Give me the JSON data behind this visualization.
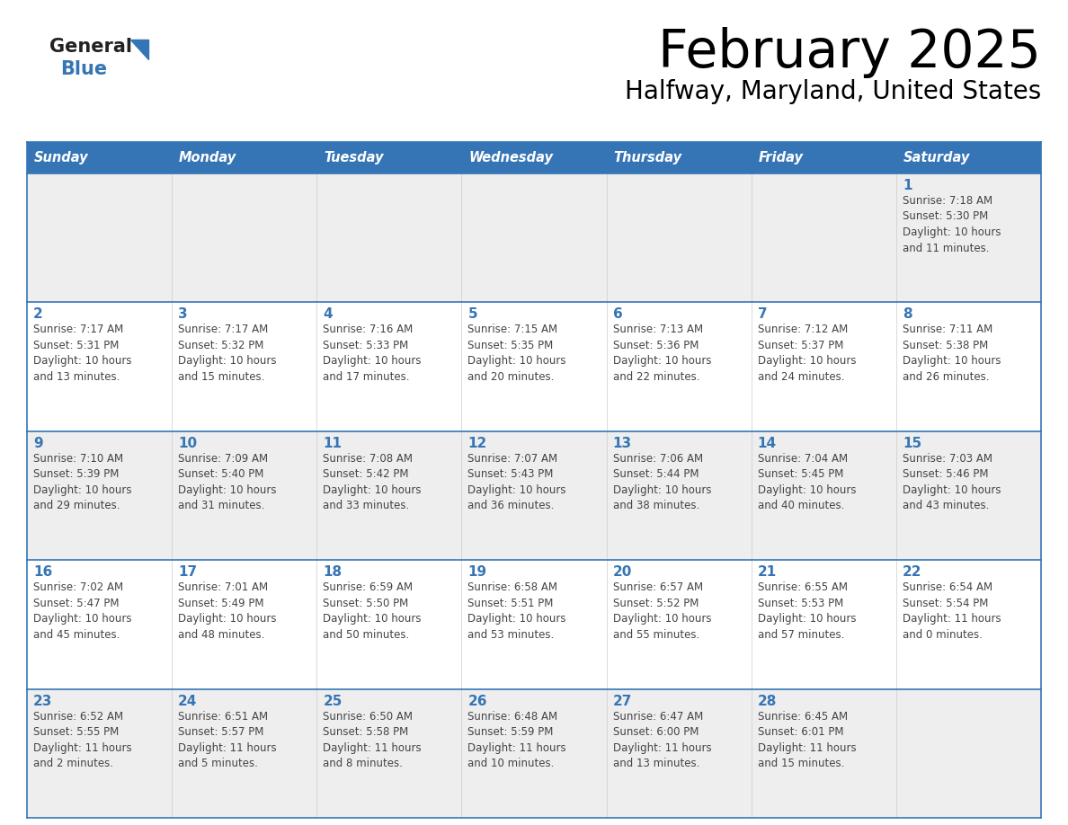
{
  "title": "February 2025",
  "subtitle": "Halfway, Maryland, United States",
  "header_bg": "#3675B5",
  "header_text": "#FFFFFF",
  "day_names": [
    "Sunday",
    "Monday",
    "Tuesday",
    "Wednesday",
    "Thursday",
    "Friday",
    "Saturday"
  ],
  "row_bg": [
    "#EEEEEE",
    "#FFFFFF",
    "#EEEEEE",
    "#FFFFFF",
    "#EEEEEE"
  ],
  "cell_border_color": "#3675B5",
  "text_color": "#444444",
  "day_number_color": "#3675B5",
  "logo_general_color": "#222222",
  "logo_blue_color": "#3675B5",
  "logo_triangle_color": "#3675B5",
  "calendar": [
    [
      null,
      null,
      null,
      null,
      null,
      null,
      {
        "day": "1",
        "sunrise": "7:18 AM",
        "sunset": "5:30 PM",
        "daylight": "10 hours\nand 11 minutes."
      }
    ],
    [
      {
        "day": "2",
        "sunrise": "7:17 AM",
        "sunset": "5:31 PM",
        "daylight": "10 hours\nand 13 minutes."
      },
      {
        "day": "3",
        "sunrise": "7:17 AM",
        "sunset": "5:32 PM",
        "daylight": "10 hours\nand 15 minutes."
      },
      {
        "day": "4",
        "sunrise": "7:16 AM",
        "sunset": "5:33 PM",
        "daylight": "10 hours\nand 17 minutes."
      },
      {
        "day": "5",
        "sunrise": "7:15 AM",
        "sunset": "5:35 PM",
        "daylight": "10 hours\nand 20 minutes."
      },
      {
        "day": "6",
        "sunrise": "7:13 AM",
        "sunset": "5:36 PM",
        "daylight": "10 hours\nand 22 minutes."
      },
      {
        "day": "7",
        "sunrise": "7:12 AM",
        "sunset": "5:37 PM",
        "daylight": "10 hours\nand 24 minutes."
      },
      {
        "day": "8",
        "sunrise": "7:11 AM",
        "sunset": "5:38 PM",
        "daylight": "10 hours\nand 26 minutes."
      }
    ],
    [
      {
        "day": "9",
        "sunrise": "7:10 AM",
        "sunset": "5:39 PM",
        "daylight": "10 hours\nand 29 minutes."
      },
      {
        "day": "10",
        "sunrise": "7:09 AM",
        "sunset": "5:40 PM",
        "daylight": "10 hours\nand 31 minutes."
      },
      {
        "day": "11",
        "sunrise": "7:08 AM",
        "sunset": "5:42 PM",
        "daylight": "10 hours\nand 33 minutes."
      },
      {
        "day": "12",
        "sunrise": "7:07 AM",
        "sunset": "5:43 PM",
        "daylight": "10 hours\nand 36 minutes."
      },
      {
        "day": "13",
        "sunrise": "7:06 AM",
        "sunset": "5:44 PM",
        "daylight": "10 hours\nand 38 minutes."
      },
      {
        "day": "14",
        "sunrise": "7:04 AM",
        "sunset": "5:45 PM",
        "daylight": "10 hours\nand 40 minutes."
      },
      {
        "day": "15",
        "sunrise": "7:03 AM",
        "sunset": "5:46 PM",
        "daylight": "10 hours\nand 43 minutes."
      }
    ],
    [
      {
        "day": "16",
        "sunrise": "7:02 AM",
        "sunset": "5:47 PM",
        "daylight": "10 hours\nand 45 minutes."
      },
      {
        "day": "17",
        "sunrise": "7:01 AM",
        "sunset": "5:49 PM",
        "daylight": "10 hours\nand 48 minutes."
      },
      {
        "day": "18",
        "sunrise": "6:59 AM",
        "sunset": "5:50 PM",
        "daylight": "10 hours\nand 50 minutes."
      },
      {
        "day": "19",
        "sunrise": "6:58 AM",
        "sunset": "5:51 PM",
        "daylight": "10 hours\nand 53 minutes."
      },
      {
        "day": "20",
        "sunrise": "6:57 AM",
        "sunset": "5:52 PM",
        "daylight": "10 hours\nand 55 minutes."
      },
      {
        "day": "21",
        "sunrise": "6:55 AM",
        "sunset": "5:53 PM",
        "daylight": "10 hours\nand 57 minutes."
      },
      {
        "day": "22",
        "sunrise": "6:54 AM",
        "sunset": "5:54 PM",
        "daylight": "11 hours\nand 0 minutes."
      }
    ],
    [
      {
        "day": "23",
        "sunrise": "6:52 AM",
        "sunset": "5:55 PM",
        "daylight": "11 hours\nand 2 minutes."
      },
      {
        "day": "24",
        "sunrise": "6:51 AM",
        "sunset": "5:57 PM",
        "daylight": "11 hours\nand 5 minutes."
      },
      {
        "day": "25",
        "sunrise": "6:50 AM",
        "sunset": "5:58 PM",
        "daylight": "11 hours\nand 8 minutes."
      },
      {
        "day": "26",
        "sunrise": "6:48 AM",
        "sunset": "5:59 PM",
        "daylight": "11 hours\nand 10 minutes."
      },
      {
        "day": "27",
        "sunrise": "6:47 AM",
        "sunset": "6:00 PM",
        "daylight": "11 hours\nand 13 minutes."
      },
      {
        "day": "28",
        "sunrise": "6:45 AM",
        "sunset": "6:01 PM",
        "daylight": "11 hours\nand 15 minutes."
      },
      null
    ]
  ]
}
